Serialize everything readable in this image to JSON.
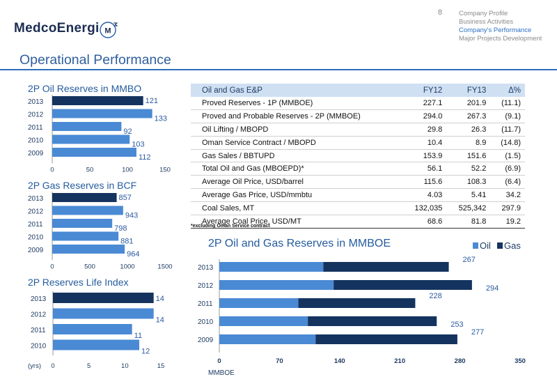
{
  "logo": {
    "text": "MedcoEnergi",
    "mark": "M"
  },
  "page_number": "8",
  "nav": [
    "Company Profile",
    "Business Activities",
    "Company's Performance",
    "Major Projects Development"
  ],
  "nav_active": 2,
  "page_title": "Operational Performance",
  "colors": {
    "oil": "#4a8ad4",
    "gas": "#15335f",
    "rule": "#2d6fb6"
  },
  "chart_data": [
    {
      "type": "bar",
      "title": "2P Oil Reserves in MMBO",
      "categories": [
        "2013",
        "2012",
        "2011",
        "2010",
        "2009"
      ],
      "values": [
        121,
        133,
        92,
        103,
        112
      ],
      "labels": [
        "121",
        "133",
        "92",
        "103",
        "112"
      ],
      "highlight": "2013",
      "ylim": [
        0,
        150
      ],
      "ticks": [
        "0",
        "50",
        "100",
        "150"
      ],
      "xlabel": ""
    },
    {
      "type": "bar",
      "title": "2P Gas Reserves in BCF",
      "categories": [
        "2013",
        "2012",
        "2011",
        "2010",
        "2009"
      ],
      "values": [
        857,
        943,
        798,
        881,
        964
      ],
      "labels": [
        "857",
        "943",
        "798",
        "881",
        "964"
      ],
      "highlight": "2013",
      "ylim": [
        0,
        1500
      ],
      "ticks": [
        "0",
        "500",
        "1000",
        "1500"
      ],
      "xlabel": ""
    },
    {
      "type": "bar",
      "title": "2P Reserves Life Index",
      "categories": [
        "2013",
        "2012",
        "2011",
        "2010"
      ],
      "values": [
        14,
        14,
        11,
        12
      ],
      "labels": [
        "14",
        "14",
        "11",
        "12"
      ],
      "highlight": "2013",
      "ylim": [
        0,
        15
      ],
      "ticks": [
        "0",
        "5",
        "10",
        "15"
      ],
      "xlabel": "(yrs)"
    },
    {
      "type": "bar",
      "stacked": true,
      "title": "2P Oil and Gas Reserves in MMBOE",
      "categories": [
        "2013",
        "2012",
        "2011",
        "2010",
        "2009"
      ],
      "series": [
        {
          "name": "Oil",
          "values": [
            121,
            133,
            92,
            103,
            112
          ]
        },
        {
          "name": "Gas",
          "values": [
            146,
            161,
            136,
            150,
            165
          ]
        }
      ],
      "totals": [
        "267",
        "294",
        "228",
        "253",
        "277"
      ],
      "ylim": [
        0,
        350
      ],
      "ticks": [
        "0",
        "70",
        "140",
        "210",
        "280",
        "350"
      ],
      "xlabel": "MMBOE",
      "legend": "top-right"
    }
  ],
  "table": {
    "headers": [
      "Oil and Gas E&P",
      "FY12",
      "FY13",
      "Δ%"
    ],
    "rows": [
      [
        "Proved Reserves - 1P (MMBOE)",
        "227.1",
        "201.9",
        "(11.1)"
      ],
      [
        "Proved and Probable Reserves - 2P (MMBOE)",
        "294.0",
        "267.3",
        "(9.1)"
      ],
      [
        "Oil Lifting / MBOPD",
        "29.8",
        "26.3",
        "(11.7)"
      ],
      [
        "Oman Service Contract / MBOPD",
        "10.4",
        "8.9",
        "(14.8)"
      ],
      [
        "Gas Sales / BBTUPD",
        "153.9",
        "151.6",
        "(1.5)"
      ],
      [
        "Total Oil and Gas (MBOEPD)*",
        "56.1",
        "52.2",
        "(6.9)"
      ],
      [
        "Average Oil Price, USD/barrel",
        "115.6",
        "108.3",
        "(6.4)"
      ],
      [
        "Average Gas Price, USD/mmbtu",
        "4.03",
        "5.41",
        "34.2"
      ],
      [
        "Coal Sales, MT",
        "132,035",
        "525,342",
        "297.9"
      ],
      [
        "Average Coal Price, USD/MT",
        "68.6",
        "81.8",
        "19.2"
      ]
    ],
    "note": "*excluding Oman Service contract"
  }
}
